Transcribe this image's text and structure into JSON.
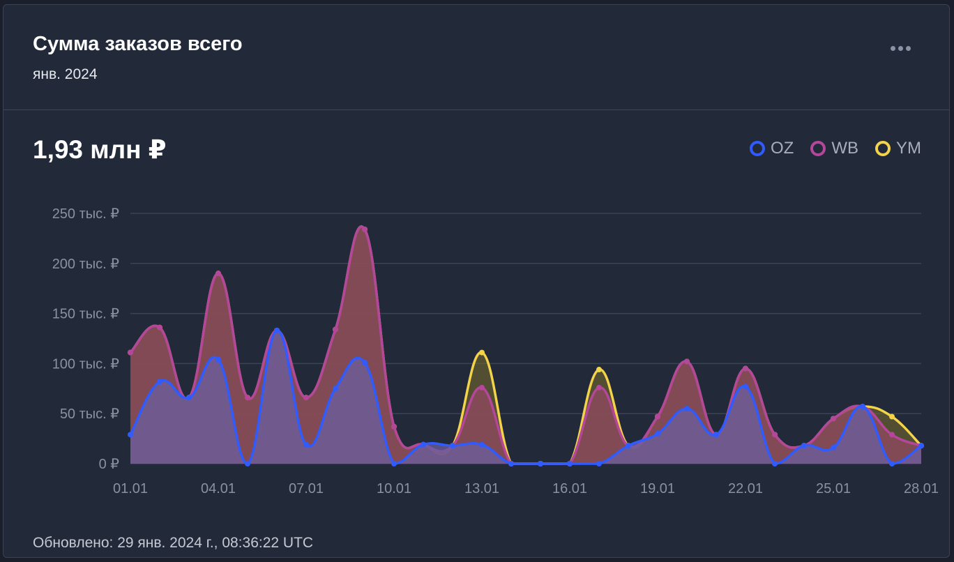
{
  "header": {
    "title": "Сумма заказов всего",
    "subtitle": "янв. 2024",
    "menu_icon": "more-horizontal-icon"
  },
  "summary": {
    "total": "1,93 млн ₽"
  },
  "legend": [
    {
      "label": "OZ",
      "color": "#2f5bff"
    },
    {
      "label": "WB",
      "color": "#b4479a"
    },
    {
      "label": "YM",
      "color": "#f2d34a"
    }
  ],
  "footer": {
    "updated": "Обновлено: 29 янв. 2024 г., 08:36:22 UTC"
  },
  "chart_data": {
    "type": "area",
    "title": "",
    "xlabel": "",
    "ylabel": "",
    "x": [
      "01.01",
      "02.01",
      "03.01",
      "04.01",
      "05.01",
      "06.01",
      "07.01",
      "08.01",
      "09.01",
      "10.01",
      "11.01",
      "12.01",
      "13.01",
      "14.01",
      "15.01",
      "16.01",
      "17.01",
      "18.01",
      "19.01",
      "20.01",
      "21.01",
      "22.01",
      "23.01",
      "24.01",
      "25.01",
      "26.01",
      "27.01",
      "28.01"
    ],
    "x_tick_labels": [
      "01.01",
      "04.01",
      "07.01",
      "10.01",
      "13.01",
      "16.01",
      "19.01",
      "22.01",
      "25.01",
      "28.01"
    ],
    "y_ticks": [
      0,
      50000,
      100000,
      150000,
      200000,
      250000
    ],
    "y_tick_labels": [
      "0 ₽",
      "50 тыс. ₽",
      "100 тыс. ₽",
      "150 тыс. ₽",
      "200 тыс. ₽",
      "250 тыс. ₽"
    ],
    "ylim": [
      0,
      250000
    ],
    "grid": true,
    "legend_position": "top-right",
    "series": [
      {
        "name": "OZ",
        "color": "#2f5bff",
        "values": [
          29000,
          82000,
          66000,
          104000,
          0,
          133000,
          19000,
          75000,
          101000,
          0,
          19000,
          18000,
          19000,
          0,
          0,
          0,
          0,
          18000,
          30000,
          55000,
          29000,
          77000,
          0,
          18000,
          16000,
          57000,
          0,
          18000
        ]
      },
      {
        "name": "WB",
        "color": "#b4479a",
        "values": [
          111000,
          136000,
          66000,
          190000,
          66000,
          133000,
          66000,
          134000,
          234000,
          37000,
          19000,
          18000,
          76000,
          0,
          0,
          0,
          76000,
          18000,
          47000,
          102000,
          29000,
          95000,
          29000,
          18000,
          45000,
          57000,
          29000,
          18000
        ]
      },
      {
        "name": "YM",
        "color": "#f2d34a",
        "values": [
          111000,
          136000,
          66000,
          190000,
          66000,
          133000,
          66000,
          134000,
          234000,
          37000,
          19000,
          18000,
          111000,
          0,
          0,
          0,
          94000,
          18000,
          47000,
          102000,
          29000,
          95000,
          29000,
          18000,
          45000,
          57000,
          47000,
          18000
        ]
      }
    ]
  }
}
